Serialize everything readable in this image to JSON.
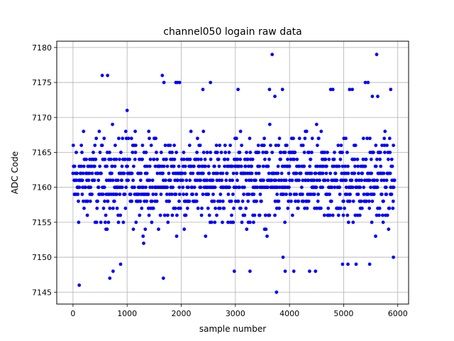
{
  "chart_data": {
    "type": "scatter",
    "title": "channel050 logain raw data",
    "xlabel": "sample number",
    "ylabel": "ADC Code",
    "xlim": [
      -300,
      6200
    ],
    "ylim": [
      7143.3,
      7180.9
    ],
    "xticks": [
      0,
      1000,
      2000,
      3000,
      4000,
      5000,
      6000
    ],
    "yticks": [
      7145,
      7150,
      7155,
      7160,
      7165,
      7170,
      7175,
      7180
    ],
    "grid": true,
    "legend": "none",
    "marker_color": "#0000ff",
    "series": [
      {
        "sample_range": [
          0,
          5940
        ],
        "dense_band": [
          7152,
          7170
        ],
        "x": [
          115,
          540,
          640,
          680,
          740,
          880,
          1000,
          1650,
          1670,
          1680,
          1900,
          1930,
          1970,
          2400,
          2540,
          2980,
          3050,
          3270,
          3630,
          3680,
          3730,
          3760,
          3870,
          3880,
          3920,
          4080,
          4370,
          4480,
          4760,
          4800,
          4980,
          5080,
          5110,
          5160,
          5230,
          5400,
          5450,
          5480,
          5530,
          5610,
          5630,
          5870,
          5920
        ],
        "y": [
          7146,
          7176,
          7176,
          7147,
          7148,
          7149,
          7171,
          7176,
          7147,
          7175,
          7175,
          7175,
          7175,
          7174,
          7175,
          7148,
          7174,
          7148,
          7174,
          7179,
          7173,
          7145,
          7174,
          7150,
          7148,
          7148,
          7148,
          7148,
          7174,
          7174,
          7149,
          7149,
          7174,
          7174,
          7149,
          7175,
          7175,
          7149,
          7173,
          7179,
          7173,
          7174,
          7150
        ]
      }
    ]
  }
}
